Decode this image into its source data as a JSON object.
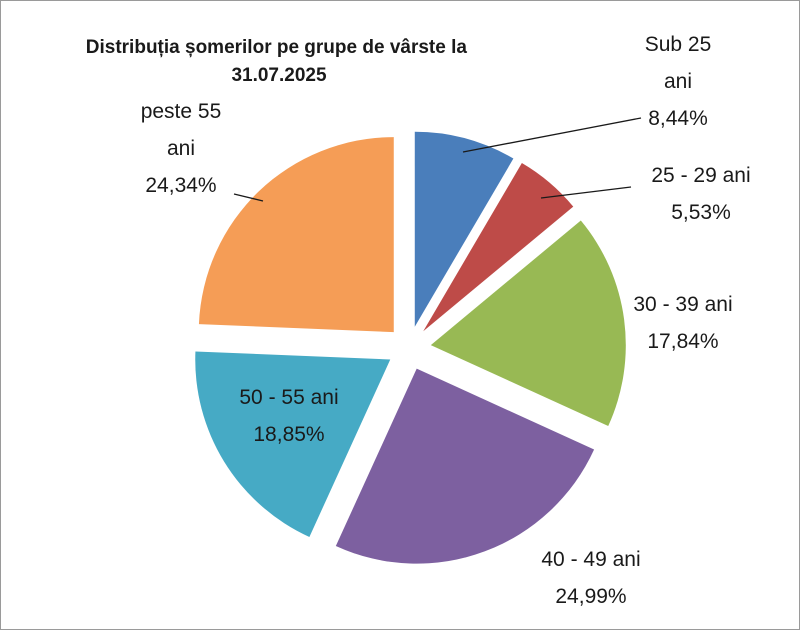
{
  "chart_data": {
    "type": "pie",
    "title": "Distribuția șomerilor pe grupe de vârste la 31.07.2025",
    "title_lines": [
      "Distribuția șomerilor pe grupe de vârste la",
      "31.07.2025"
    ],
    "exploded": true,
    "start": "top",
    "direction": "clockwise",
    "slices": [
      {
        "label": "Sub 25 ani",
        "value": 8.44,
        "value_text": "8,44%",
        "color": "#4a7ebb",
        "label_lines": [
          "Sub 25",
          "ani",
          "8,44%"
        ]
      },
      {
        "label": "25 - 29 ani",
        "value": 5.53,
        "value_text": "5,53%",
        "color": "#be4b48",
        "label_lines": [
          "25 - 29 ani",
          "5,53%"
        ]
      },
      {
        "label": "30 - 39 ani",
        "value": 17.84,
        "value_text": "17,84%",
        "color": "#98b954",
        "label_lines": [
          "30 - 39 ani",
          "17,84%"
        ]
      },
      {
        "label": "40 - 49 ani",
        "value": 24.99,
        "value_text": "24,99%",
        "color": "#7d60a0",
        "label_lines": [
          "40 - 49 ani",
          "24,99%"
        ]
      },
      {
        "label": "50 - 55 ani",
        "value": 18.85,
        "value_text": "18,85%",
        "color": "#46aac5",
        "label_lines": [
          "50 - 55 ani",
          "18,85%"
        ]
      },
      {
        "label": "peste 55 ani",
        "value": 24.34,
        "value_text": "24,34%",
        "color": "#f59d56",
        "label_lines": [
          "peste 55",
          "ani",
          "24,34%"
        ]
      }
    ]
  }
}
